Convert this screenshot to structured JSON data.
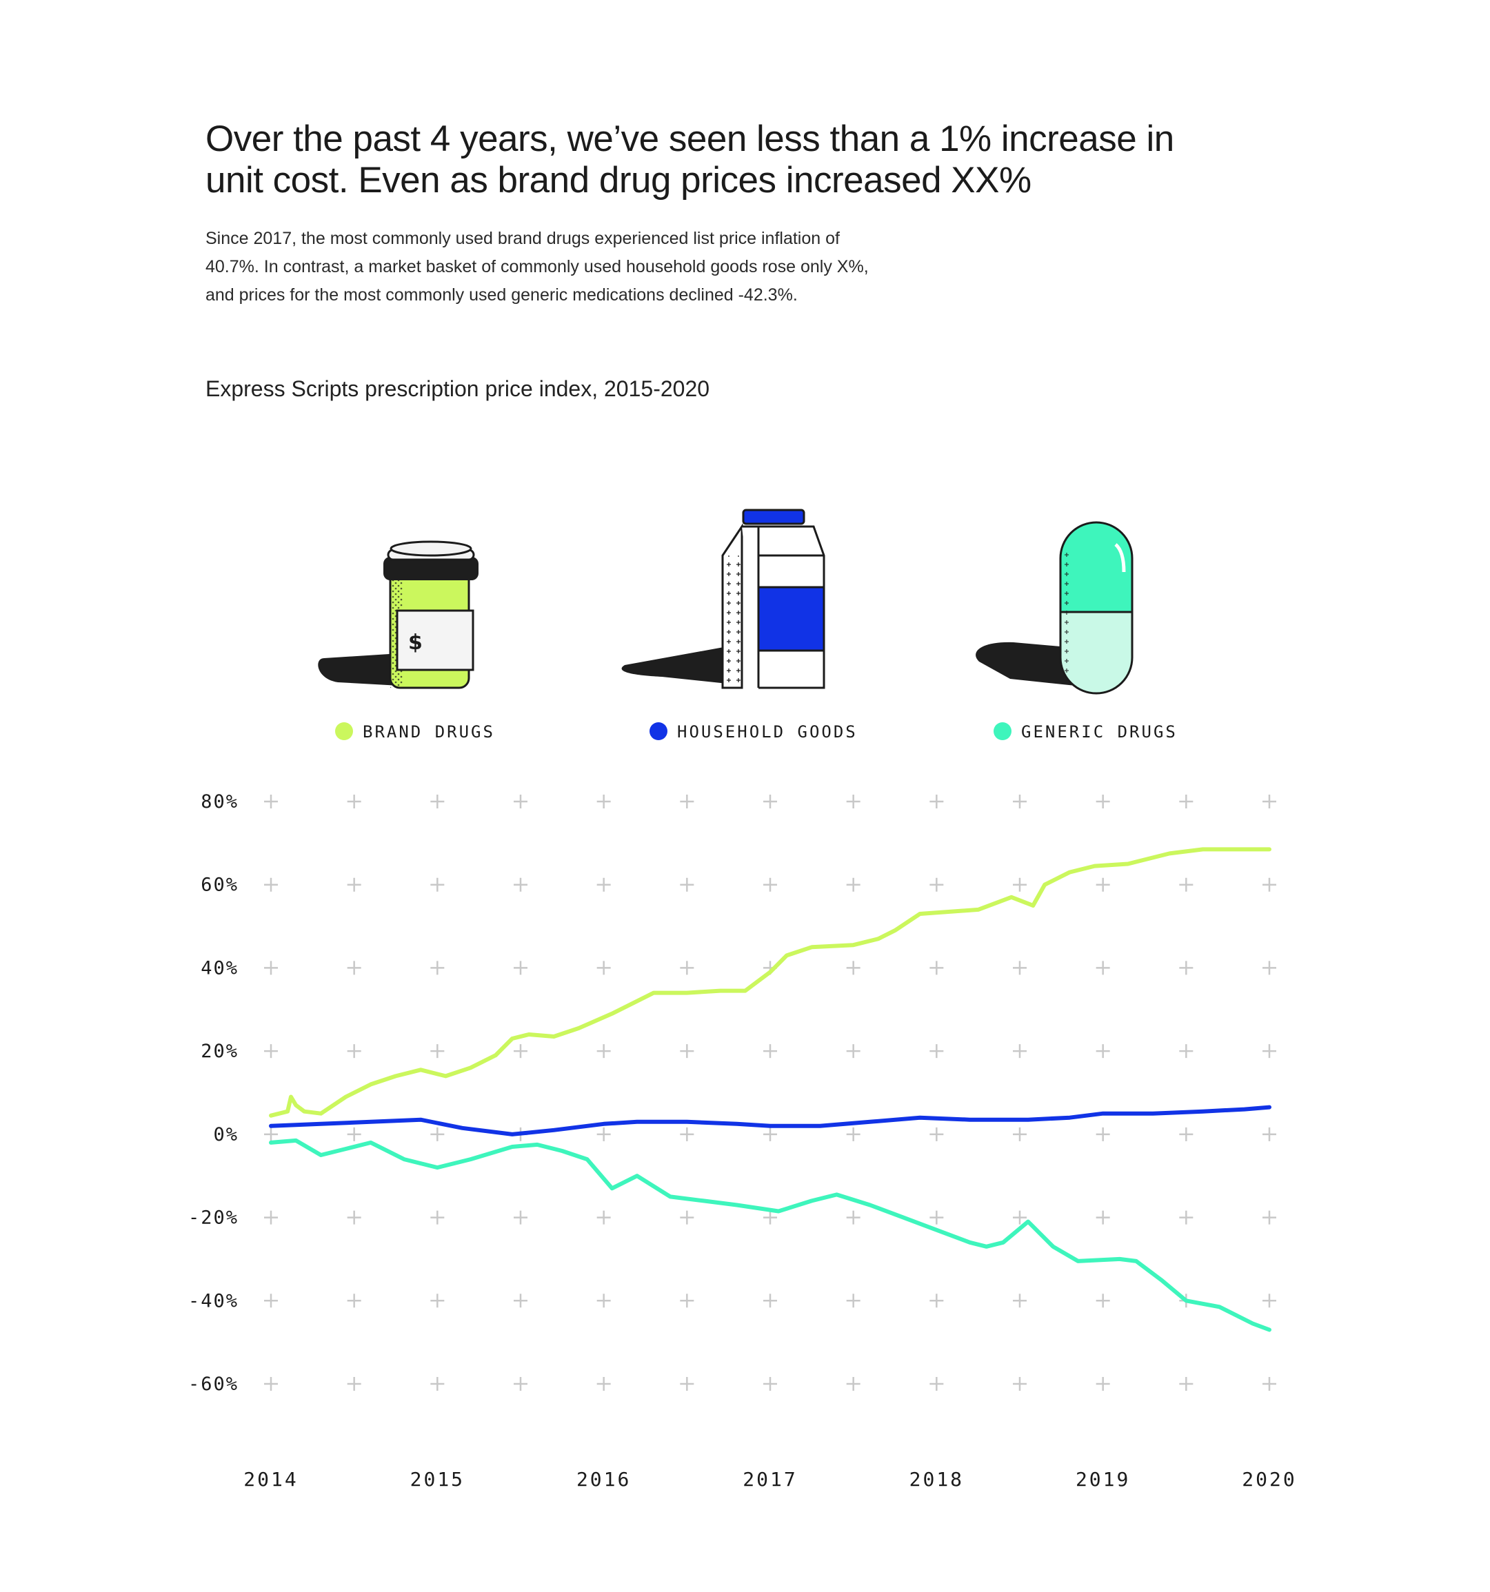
{
  "headline": {
    "line1": "Over the past 4 years, we’ve seen less than a 1% increase in",
    "line2": "unit cost. Even as brand drug prices increased XX%"
  },
  "intro": {
    "line1": "Since 2017, the most commonly used brand drugs experienced list price inflation of",
    "line2": "40.7%. In contrast, a market basket of commonly used household goods rose only X%,",
    "line3": "and prices for the most commonly used generic medications declined -42.3%."
  },
  "chart_title": "Express Scripts prescription price index, 2015-2020",
  "legend": [
    {
      "label": "BRAND DRUGS",
      "color": "#cbf75d",
      "icon": "pill-bottle-icon"
    },
    {
      "label": "HOUSEHOLD GOODS",
      "color": "#1133e6",
      "icon": "milk-carton-icon"
    },
    {
      "label": "GENERIC DRUGS",
      "color": "#3ef5bc",
      "icon": "capsule-icon"
    }
  ],
  "chart_data": {
    "type": "line",
    "title": "Express Scripts prescription price index, 2015-2020",
    "xlabel": "",
    "ylabel": "",
    "xlim": [
      2014,
      2020
    ],
    "ylim": [
      -60,
      80
    ],
    "x_ticks": [
      "2014",
      "2015",
      "2016",
      "2017",
      "2018",
      "2019",
      "2020"
    ],
    "y_ticks": [
      "80%",
      "60%",
      "40%",
      "20%",
      "0%",
      "-20%",
      "-40%",
      "-60%"
    ],
    "y_tick_values": [
      80,
      60,
      40,
      20,
      0,
      -20,
      -40,
      -60
    ],
    "grid": "plus-markers",
    "series": [
      {
        "name": "BRAND DRUGS",
        "color": "#cbf75d",
        "x": [
          2014.0,
          2014.1,
          2014.12,
          2014.15,
          2014.2,
          2014.3,
          2014.45,
          2014.6,
          2014.75,
          2014.9,
          2015.05,
          2015.2,
          2015.35,
          2015.45,
          2015.55,
          2015.7,
          2015.85,
          2016.05,
          2016.3,
          2016.5,
          2016.7,
          2016.85,
          2017.0,
          2017.1,
          2017.25,
          2017.5,
          2017.65,
          2017.75,
          2017.9,
          2018.25,
          2018.45,
          2018.58,
          2018.65,
          2018.8,
          2018.95,
          2019.15,
          2019.4,
          2019.6,
          2019.8,
          2020.0
        ],
        "values": [
          4.5,
          5.5,
          9,
          7,
          5.5,
          5,
          9,
          12,
          14,
          15.5,
          14,
          16,
          19,
          23,
          24,
          23.5,
          25.5,
          29,
          34,
          34,
          34.5,
          34.5,
          39,
          43,
          45,
          45.5,
          47,
          49,
          53,
          54,
          57,
          55,
          60,
          63,
          64.5,
          65,
          67.5,
          68.5,
          68.5,
          68.5
        ],
        "ends": {
          "start": 4.5,
          "end": 68.5
        }
      },
      {
        "name": "HOUSEHOLD GOODS",
        "color": "#1133e6",
        "x": [
          2014.0,
          2014.3,
          2014.6,
          2014.9,
          2015.15,
          2015.45,
          2015.7,
          2016.0,
          2016.2,
          2016.5,
          2016.8,
          2017.0,
          2017.3,
          2017.6,
          2017.9,
          2018.2,
          2018.55,
          2018.8,
          2019.0,
          2019.3,
          2019.6,
          2019.85,
          2020.0
        ],
        "values": [
          2,
          2.5,
          3,
          3.5,
          1.5,
          0,
          1,
          2.5,
          3,
          3,
          2.5,
          2,
          2,
          3,
          4,
          3.5,
          3.5,
          4,
          5,
          5,
          5.5,
          6,
          6.5
        ],
        "ends": {
          "start": 2,
          "end": 6.5
        }
      },
      {
        "name": "GENERIC DRUGS",
        "color": "#3ef5bc",
        "x": [
          2014.0,
          2014.15,
          2014.3,
          2014.45,
          2014.6,
          2014.8,
          2015.0,
          2015.2,
          2015.45,
          2015.6,
          2015.75,
          2015.9,
          2016.05,
          2016.2,
          2016.4,
          2016.6,
          2016.8,
          2017.05,
          2017.25,
          2017.4,
          2017.6,
          2017.8,
          2018.0,
          2018.2,
          2018.3,
          2018.4,
          2018.55,
          2018.7,
          2018.85,
          2019.1,
          2019.2,
          2019.35,
          2019.5,
          2019.7,
          2019.9,
          2020.0
        ],
        "values": [
          -2,
          -1.5,
          -5,
          -3.5,
          -2,
          -6,
          -8,
          -6,
          -3,
          -2.5,
          -4,
          -6,
          -13,
          -10,
          -15,
          -16,
          -17,
          -18.5,
          -16,
          -14.5,
          -17,
          -20,
          -23,
          -26,
          -27,
          -26,
          -21,
          -27,
          -30.5,
          -30,
          -30.5,
          -35,
          -40,
          -41.5,
          -45.5,
          -47
        ],
        "ends": {
          "start": -2,
          "end": -47
        }
      }
    ]
  }
}
